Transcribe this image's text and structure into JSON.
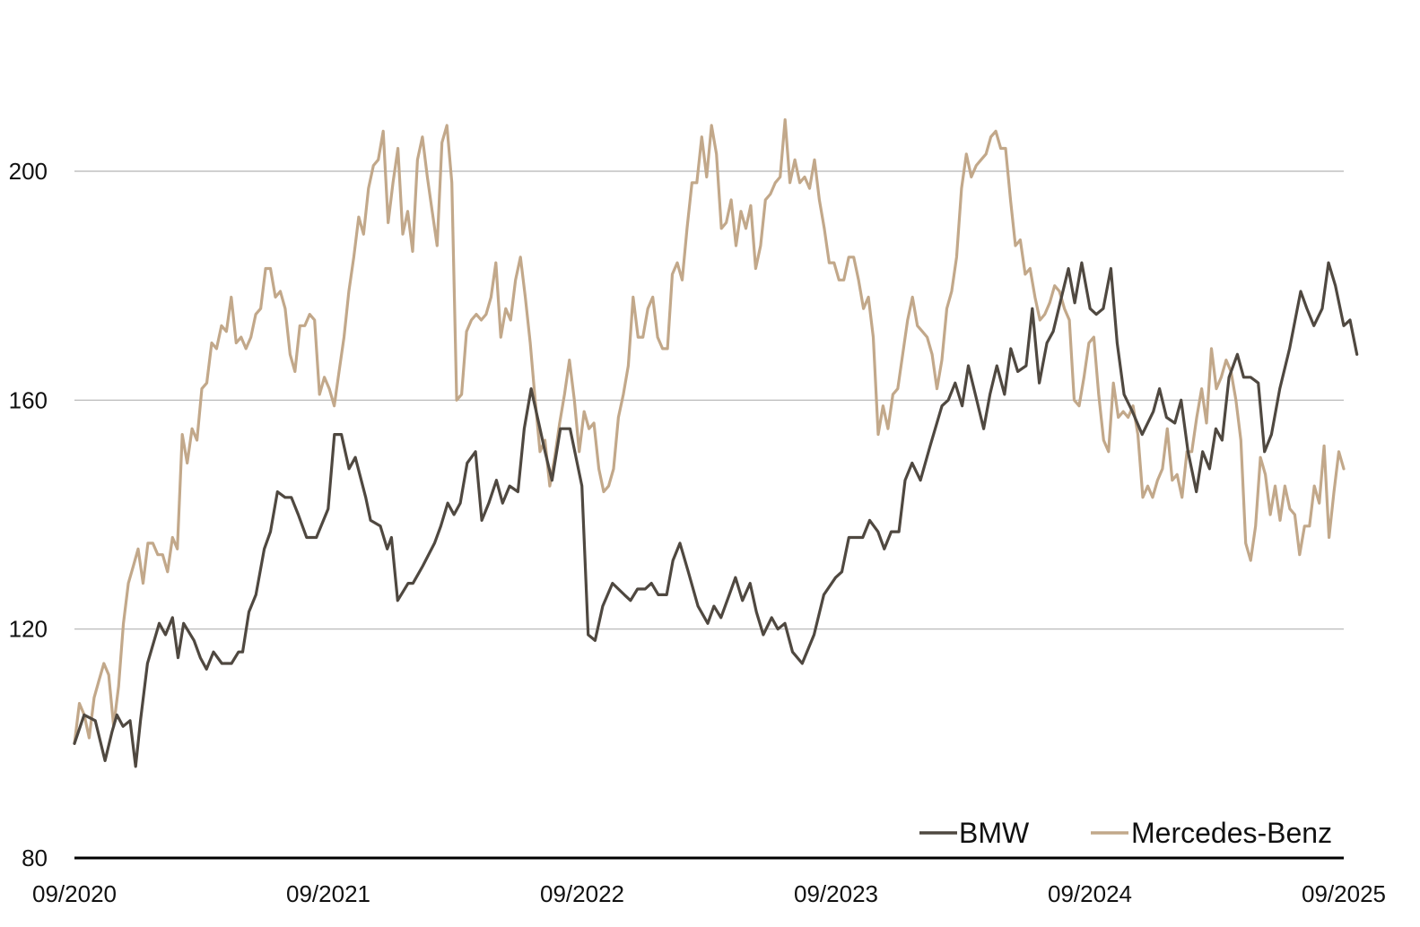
{
  "chart_data": {
    "type": "line",
    "title": "",
    "xlabel": "",
    "ylabel": "",
    "x_tick_labels": [
      "09/2020",
      "09/2021",
      "09/2022",
      "09/2023",
      "09/2024",
      "09/2025"
    ],
    "x_range": [
      "09/2020",
      "09/2025"
    ],
    "y_ticks": [
      80,
      120,
      160,
      200
    ],
    "ylim": [
      80,
      215
    ],
    "grid": "horizontal",
    "legend_position": "bottom-right",
    "series": [
      {
        "name": "BMW",
        "color": "#4f4840",
        "points": [
          [
            "2020-09",
            100
          ],
          [
            "2020-09-15",
            105
          ],
          [
            "2020-10",
            104
          ],
          [
            "2020-10-15",
            97
          ],
          [
            "2020-10-25",
            102
          ],
          [
            "2020-11-01",
            105
          ],
          [
            "2020-11-10",
            103
          ],
          [
            "2020-11-20",
            104
          ],
          [
            "2020-11-28",
            96
          ],
          [
            "2020-12-05",
            104
          ],
          [
            "2020-12-15",
            114
          ],
          [
            "2021-01",
            121
          ],
          [
            "2021-01-10",
            119
          ],
          [
            "2021-01-20",
            122
          ],
          [
            "2021-01-28",
            115
          ],
          [
            "2021-02-05",
            121
          ],
          [
            "2021-02-20",
            118
          ],
          [
            "2021-03",
            115
          ],
          [
            "2021-03-10",
            113
          ],
          [
            "2021-03-20",
            116
          ],
          [
            "2021-04",
            114
          ],
          [
            "2021-04-15",
            114
          ],
          [
            "2021-04-25",
            116
          ],
          [
            "2021-05",
            116
          ],
          [
            "2021-05-10",
            123
          ],
          [
            "2021-05-20",
            126
          ],
          [
            "2021-06",
            134
          ],
          [
            "2021-06-10",
            137
          ],
          [
            "2021-06-20",
            144
          ],
          [
            "2021-07",
            143
          ],
          [
            "2021-07-10",
            143
          ],
          [
            "2021-07-20",
            140
          ],
          [
            "2021-08",
            136
          ],
          [
            "2021-08-15",
            136
          ],
          [
            "2021-09",
            141
          ],
          [
            "2021-09-10",
            154
          ],
          [
            "2021-09-20",
            154
          ],
          [
            "2021-10",
            148
          ],
          [
            "2021-10-10",
            150
          ],
          [
            "2021-10-25",
            143
          ],
          [
            "2021-11",
            139
          ],
          [
            "2021-11-15",
            138
          ],
          [
            "2021-11-25",
            134
          ],
          [
            "2021-12",
            136
          ],
          [
            "2021-12-10",
            125
          ],
          [
            "2021-12-25",
            128
          ],
          [
            "2022-01",
            128
          ],
          [
            "2022-01-15",
            131
          ],
          [
            "2022-02",
            135
          ],
          [
            "2022-02-10",
            138
          ],
          [
            "2022-02-20",
            142
          ],
          [
            "2022-03",
            140
          ],
          [
            "2022-03-10",
            142
          ],
          [
            "2022-03-20",
            149
          ],
          [
            "2022-04",
            151
          ],
          [
            "2022-04-10",
            139
          ],
          [
            "2022-04-20",
            142
          ],
          [
            "2022-05",
            146
          ],
          [
            "2022-05-10",
            142
          ],
          [
            "2022-05-20",
            145
          ],
          [
            "2022-06",
            144
          ],
          [
            "2022-06-10",
            155
          ],
          [
            "2022-06-20",
            162
          ],
          [
            "2022-07",
            156
          ],
          [
            "2022-07-10",
            151
          ],
          [
            "2022-07-20",
            146
          ],
          [
            "2022-08",
            155
          ],
          [
            "2022-08-15",
            155
          ],
          [
            "2022-09",
            145
          ],
          [
            "2022-09-10",
            119
          ],
          [
            "2022-09-20",
            118
          ],
          [
            "2022-10",
            124
          ],
          [
            "2022-10-15",
            128
          ],
          [
            "2022-11",
            126
          ],
          [
            "2022-11-10",
            125
          ],
          [
            "2022-11-20",
            127
          ],
          [
            "2022-12",
            127
          ],
          [
            "2022-12-10",
            128
          ],
          [
            "2022-12-20",
            126
          ],
          [
            "2023-01",
            126
          ],
          [
            "2023-01-10",
            132
          ],
          [
            "2023-01-20",
            135
          ],
          [
            "2023-02",
            130
          ],
          [
            "2023-02-15",
            124
          ],
          [
            "2023-03",
            121
          ],
          [
            "2023-03-10",
            124
          ],
          [
            "2023-03-20",
            122
          ],
          [
            "2023-04",
            126
          ],
          [
            "2023-04-10",
            129
          ],
          [
            "2023-04-20",
            125
          ],
          [
            "2023-05",
            128
          ],
          [
            "2023-05-10",
            123
          ],
          [
            "2023-05-20",
            119
          ],
          [
            "2023-06",
            122
          ],
          [
            "2023-06-10",
            120
          ],
          [
            "2023-06-20",
            121
          ],
          [
            "2023-07",
            116
          ],
          [
            "2023-07-15",
            114
          ],
          [
            "2023-08",
            119
          ],
          [
            "2023-08-15",
            126
          ],
          [
            "2023-09",
            129
          ],
          [
            "2023-09-10",
            130
          ],
          [
            "2023-09-20",
            136
          ],
          [
            "2023-10",
            136
          ],
          [
            "2023-10-10",
            136
          ],
          [
            "2023-10-20",
            139
          ],
          [
            "2023-11",
            137
          ],
          [
            "2023-11-10",
            134
          ],
          [
            "2023-11-20",
            137
          ],
          [
            "2023-12",
            137
          ],
          [
            "2023-12-10",
            146
          ],
          [
            "2023-12-20",
            149
          ],
          [
            "2024-01",
            146
          ],
          [
            "2024-01-15",
            152
          ],
          [
            "2024-02",
            159
          ],
          [
            "2024-02-10",
            160
          ],
          [
            "2024-02-20",
            163
          ],
          [
            "2024-03",
            159
          ],
          [
            "2024-03-10",
            166
          ],
          [
            "2024-03-20",
            161
          ],
          [
            "2024-04",
            155
          ],
          [
            "2024-04-10",
            161
          ],
          [
            "2024-04-20",
            166
          ],
          [
            "2024-05",
            161
          ],
          [
            "2024-05-10",
            169
          ],
          [
            "2024-05-20",
            165
          ],
          [
            "2024-06",
            166
          ],
          [
            "2024-06-10",
            176
          ],
          [
            "2024-06-20",
            163
          ],
          [
            "2024-07",
            170
          ],
          [
            "2024-07-10",
            172
          ],
          [
            "2024-07-20",
            177
          ],
          [
            "2024-08",
            183
          ],
          [
            "2024-08-10",
            177
          ],
          [
            "2024-08-20",
            184
          ],
          [
            "2024-09",
            176
          ],
          [
            "2024-09-10",
            175
          ],
          [
            "2024-09-20",
            176
          ],
          [
            "2024-10",
            183
          ],
          [
            "2024-10-10",
            170
          ],
          [
            "2024-10-20",
            161
          ],
          [
            "2024-11",
            158
          ],
          [
            "2024-11-15",
            154
          ],
          [
            "2024-12",
            158
          ],
          [
            "2024-12-10",
            162
          ],
          [
            "2024-12-20",
            157
          ],
          [
            "2025-01",
            156
          ],
          [
            "2025-01-10",
            160
          ],
          [
            "2025-01-20",
            151
          ],
          [
            "2025-02",
            144
          ],
          [
            "2025-02-10",
            151
          ],
          [
            "2025-02-20",
            148
          ],
          [
            "2025-03",
            155
          ],
          [
            "2025-03-10",
            153
          ],
          [
            "2025-03-20",
            164
          ],
          [
            "2025-04",
            168
          ],
          [
            "2025-04-10",
            164
          ],
          [
            "2025-04-20",
            164
          ],
          [
            "2025-05",
            163
          ],
          [
            "2025-05-10",
            151
          ],
          [
            "2025-05-20",
            154
          ],
          [
            "2025-06",
            162
          ],
          [
            "2025-06-15",
            169
          ],
          [
            "2025-07",
            179
          ],
          [
            "2025-07-10",
            176
          ],
          [
            "2025-07-20",
            173
          ],
          [
            "2025-08",
            176
          ],
          [
            "2025-08-10",
            184
          ],
          [
            "2025-08-20",
            180
          ],
          [
            "2025-09",
            173
          ],
          [
            "2025-09-10",
            174
          ],
          [
            "2025-09-20",
            168
          ]
        ]
      },
      {
        "name": "Mercedes-Benz",
        "color": "#c2a88a",
        "points": []
      }
    ]
  }
}
